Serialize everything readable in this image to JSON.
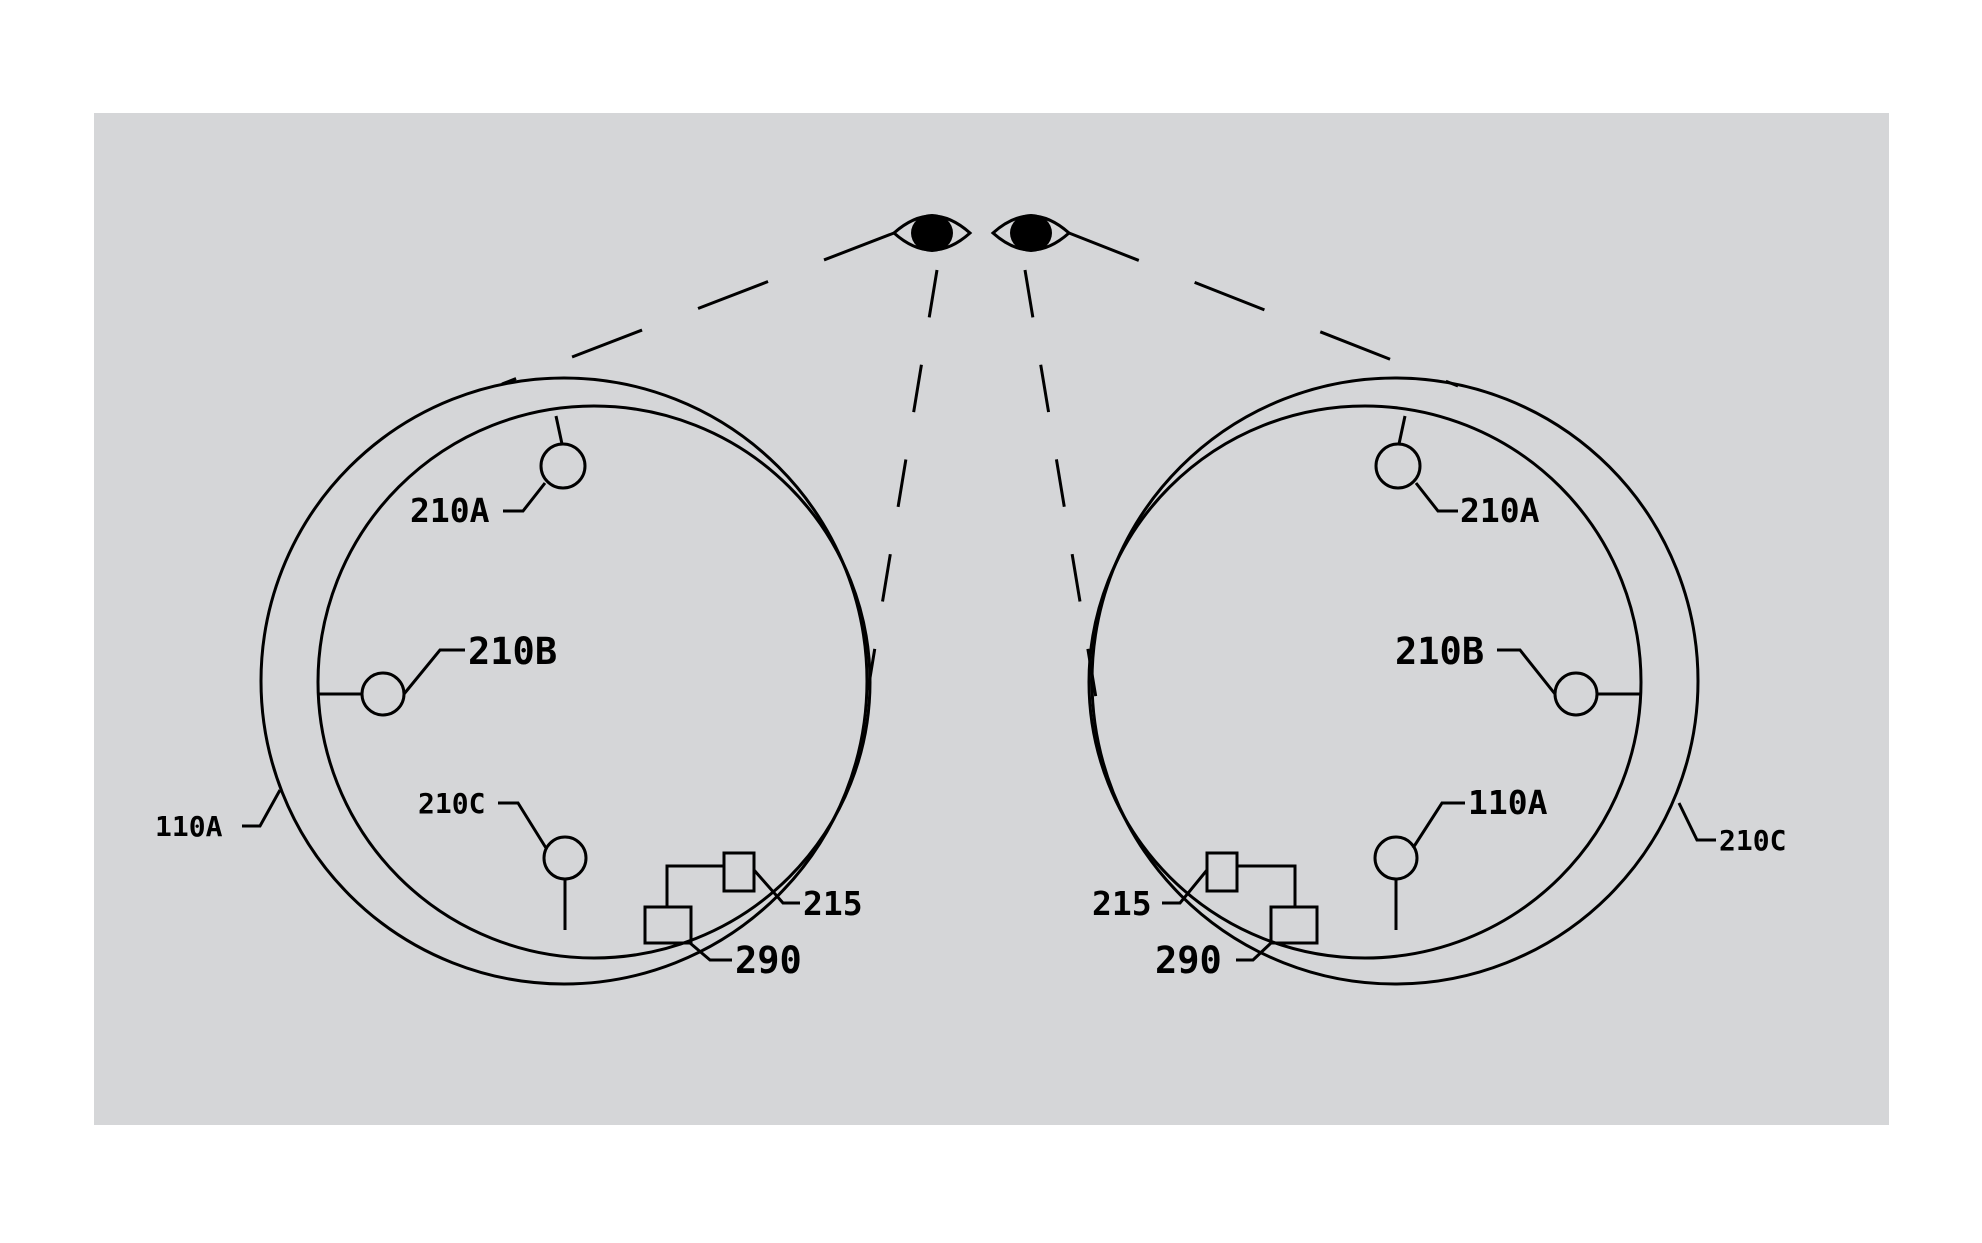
{
  "diagram": {
    "panel_color": "#d5d6d8",
    "line_color": "#000000",
    "left_unit": {
      "labels": {
        "sensor_a": "210A",
        "sensor_b": "210B",
        "sensor_c": "210C",
        "frame": "110A",
        "small_box": "215",
        "large_box": "290"
      }
    },
    "right_unit": {
      "labels": {
        "sensor_a": "210A",
        "sensor_b": "210B",
        "sensor_c": "210C",
        "frame": "110A",
        "small_box": "215",
        "large_box": "290"
      }
    },
    "icons": [
      "eye-icon",
      "eye-icon"
    ]
  }
}
